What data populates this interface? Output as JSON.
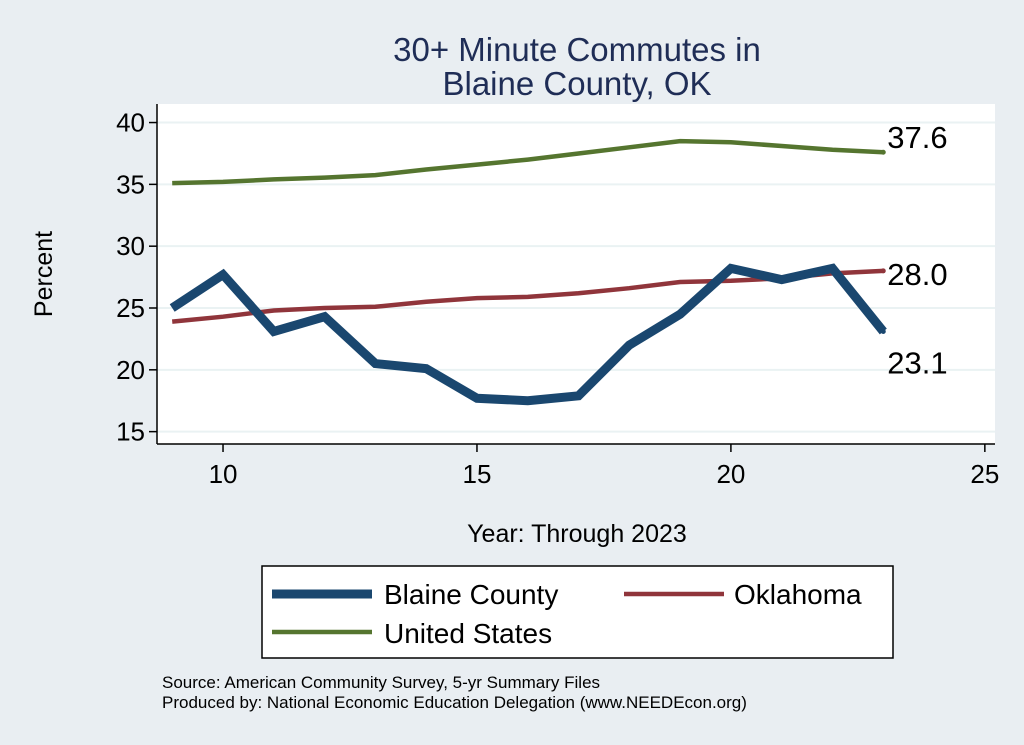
{
  "chart_data": {
    "type": "line",
    "title": [
      "30+ Minute Commutes in",
      "Blaine County, OK"
    ],
    "xlabel": "Year: Through 2023",
    "ylabel": "Percent",
    "xlim": [
      8.7,
      25.2
    ],
    "ylim": [
      14.0,
      41.5
    ],
    "xticks": [
      10,
      15,
      20,
      25
    ],
    "yticks": [
      15,
      20,
      25,
      30,
      35,
      40
    ],
    "grid": true,
    "x": [
      9,
      10,
      11,
      12,
      13,
      14,
      15,
      16,
      17,
      18,
      19,
      20,
      21,
      22,
      23
    ],
    "series": [
      {
        "name": "Blaine County",
        "color": "#1a476f",
        "values": [
          25.0,
          27.7,
          23.1,
          24.3,
          20.5,
          20.1,
          17.7,
          17.5,
          17.9,
          22.0,
          24.5,
          28.2,
          27.3,
          28.2,
          23.1
        ],
        "end_label": "23.1"
      },
      {
        "name": "Oklahoma",
        "color": "#90353b",
        "values": [
          23.9,
          24.3,
          24.8,
          25.0,
          25.1,
          25.5,
          25.8,
          25.9,
          26.2,
          26.6,
          27.1,
          27.2,
          27.4,
          27.8,
          28.0
        ],
        "end_label": "28.0"
      },
      {
        "name": "United States",
        "color": "#55752f",
        "values": [
          35.1,
          35.2,
          35.4,
          35.55,
          35.75,
          36.2,
          36.6,
          37.0,
          37.5,
          38.0,
          38.5,
          38.4,
          38.1,
          37.8,
          37.6
        ],
        "end_label": "37.6"
      }
    ],
    "legend": {
      "position": "bottom",
      "entries": [
        "Blaine County",
        "Oklahoma",
        "United States"
      ]
    },
    "source_lines": [
      "Source: American Community Survey, 5-yr Summary Files",
      "Produced by: National Economic Education Delegation (www.NEEDEcon.org)"
    ]
  },
  "colors": {
    "background": "#e9eef2",
    "plot_background": "#ffffff",
    "grid": "#eaf2f3",
    "title": "#1f2d56"
  }
}
